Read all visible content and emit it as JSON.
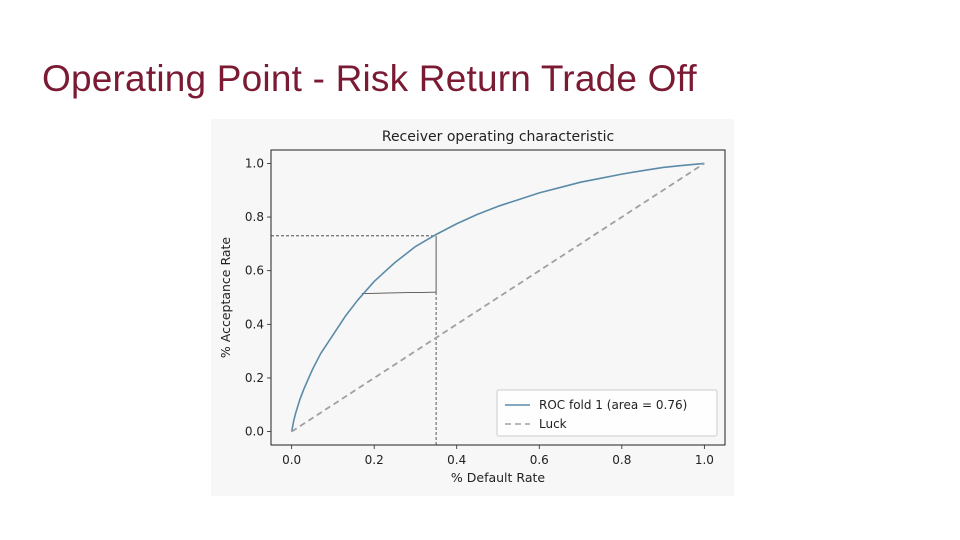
{
  "slide": {
    "title": "Operating Point - Risk Return Trade Off",
    "title_color": "#7b1a33"
  },
  "chart_data": {
    "type": "line",
    "title": "Receiver operating characteristic",
    "xlabel": "% Default Rate",
    "ylabel": "% Acceptance Rate",
    "xlim": [
      -0.05,
      1.05
    ],
    "ylim": [
      -0.05,
      1.05
    ],
    "xticks": [
      "0.0",
      "0.2",
      "0.4",
      "0.6",
      "0.8",
      "1.0"
    ],
    "yticks": [
      "0.0",
      "0.2",
      "0.4",
      "0.6",
      "0.8",
      "1.0"
    ],
    "grid": false,
    "legend_position": "lower-right",
    "series": [
      {
        "name": "ROC fold 1 (area = 0.76)",
        "color": "#5b8ba8",
        "style": "solid",
        "x": [
          0.0,
          0.005,
          0.01,
          0.02,
          0.03,
          0.05,
          0.07,
          0.1,
          0.13,
          0.16,
          0.2,
          0.25,
          0.3,
          0.35,
          0.4,
          0.45,
          0.5,
          0.55,
          0.6,
          0.65,
          0.7,
          0.75,
          0.8,
          0.85,
          0.9,
          0.95,
          1.0
        ],
        "y": [
          0.0,
          0.04,
          0.07,
          0.12,
          0.16,
          0.23,
          0.29,
          0.36,
          0.43,
          0.49,
          0.56,
          0.63,
          0.69,
          0.735,
          0.775,
          0.81,
          0.84,
          0.865,
          0.89,
          0.91,
          0.93,
          0.945,
          0.96,
          0.973,
          0.985,
          0.993,
          1.0
        ]
      },
      {
        "name": "Luck",
        "color": "#a0a0a0",
        "style": "dashed",
        "x": [
          0.0,
          1.0
        ],
        "y": [
          0.0,
          1.0
        ]
      }
    ],
    "annotations": {
      "operating_point_lines": [
        {
          "style": "dashed",
          "x": [
            -0.05,
            0.35
          ],
          "y": [
            0.73,
            0.73
          ]
        },
        {
          "style": "dashed",
          "x": [
            0.35,
            0.35
          ],
          "y": [
            -0.05,
            0.52
          ]
        },
        {
          "style": "solid",
          "x": [
            0.35,
            0.35
          ],
          "y": [
            0.52,
            0.73
          ]
        },
        {
          "style": "solid",
          "x": [
            0.17,
            0.35
          ],
          "y": [
            0.515,
            0.52
          ]
        }
      ]
    }
  }
}
